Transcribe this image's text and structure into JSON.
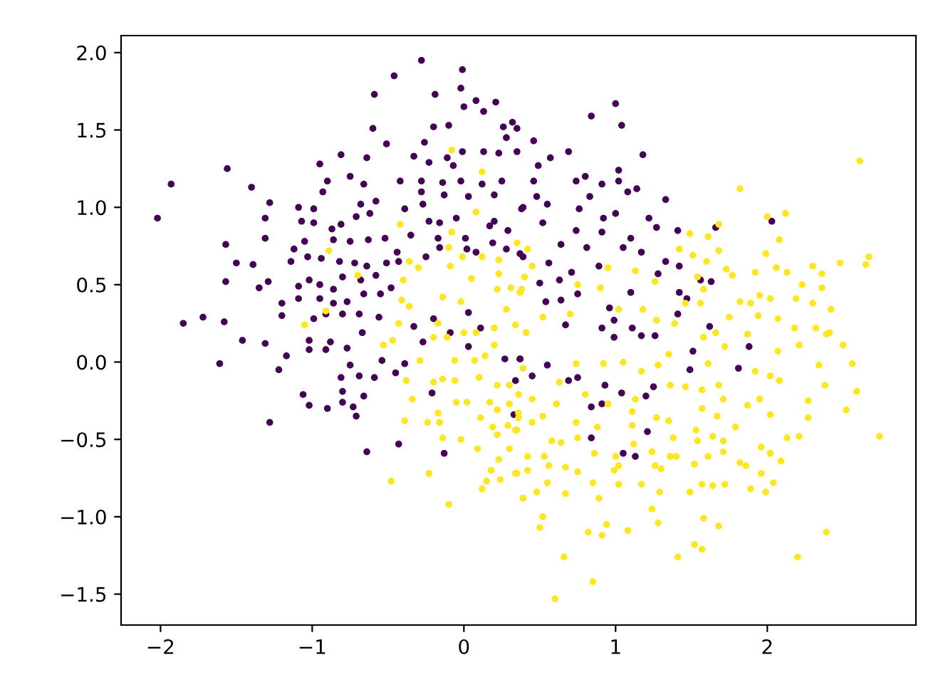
{
  "chart_data": {
    "type": "scatter",
    "marker": "circle",
    "grid": false,
    "xlim": [
      -2.26,
      2.98
    ],
    "ylim": [
      -1.7,
      2.11
    ],
    "xticks": [
      {
        "value": -2,
        "label": "−2"
      },
      {
        "value": -1,
        "label": "−1"
      },
      {
        "value": 0,
        "label": "0"
      },
      {
        "value": 1,
        "label": "1"
      },
      {
        "value": 2,
        "label": "2"
      }
    ],
    "yticks": [
      {
        "value": -1.5,
        "label": "−1.5"
      },
      {
        "value": -1.0,
        "label": "−1.0"
      },
      {
        "value": -0.5,
        "label": "−0.5"
      },
      {
        "value": 0.0,
        "label": "0.0"
      },
      {
        "value": 0.5,
        "label": "0.5"
      },
      {
        "value": 1.0,
        "label": "1.0"
      },
      {
        "value": 1.5,
        "label": "1.5"
      },
      {
        "value": 2.0,
        "label": "2.0"
      }
    ],
    "series": [
      {
        "color": "#440154",
        "x": [
          -2.02,
          -1.93,
          -1.56,
          -1.4,
          -1.28,
          -1.31,
          -1.31,
          -1.57,
          -1.5,
          -1.57,
          -1.39,
          -1.85,
          -1.72,
          -1.58,
          -0.46,
          -0.28,
          -0.01,
          -0.59,
          -0.19,
          -0.02,
          0.08,
          0.21,
          0.0,
          -0.6,
          -0.51,
          -0.2,
          -0.1,
          -0.26,
          -0.81,
          -0.95,
          -0.64,
          -0.75,
          -0.9,
          -0.93,
          -1.09,
          -0.99,
          -1.07,
          -0.99,
          -0.87,
          -0.81,
          -0.71,
          -0.62,
          -0.58,
          -0.68,
          -0.66,
          -0.42,
          -0.33,
          -0.23,
          -0.11,
          -0.07,
          -0.01,
          0.13,
          0.23,
          0.35,
          0.32,
          0.26,
          0.28,
          0.13,
          0.25,
          0.12,
          -0.02,
          -0.14,
          -0.28,
          -0.28,
          -0.27,
          -0.39,
          -0.13,
          0.03,
          0.2,
          0.39,
          0.2,
          -0.05,
          -0.16,
          -0.23,
          -0.35,
          -0.17,
          0.01,
          0.17,
          0.29,
          0.19,
          0.28,
          0.37,
          0.08,
          -0.16,
          -0.25,
          -0.44,
          -0.52,
          -0.63,
          -0.75,
          -0.86,
          -1.05,
          -1.12,
          -1.14,
          -1.03,
          -0.94,
          -0.82,
          -0.72,
          -0.64,
          -0.51,
          -0.43,
          -0.8,
          -0.68,
          -0.58,
          -0.48,
          -0.55,
          -0.66,
          -0.77,
          -0.86,
          -0.95,
          -1.02,
          -1.09,
          -1.09,
          -0.95,
          -0.86,
          -0.99,
          -0.91,
          -0.8,
          -0.69,
          -0.56,
          -1.2,
          -1.2,
          -1.29,
          -1.35,
          -0.33,
          -0.2,
          0.03,
          0.11,
          0.02,
          1.0,
          0.84,
          1.04,
          1.18,
          0.46,
          0.35,
          0.69,
          0.57,
          0.49,
          0.46,
          0.74,
          0.8,
          0.91,
          1.02,
          1.02,
          1.08,
          1.14,
          1.33,
          0.83,
          0.48,
          0.55,
          0.76,
          0.92,
          1.0,
          0.52,
          0.38,
          0.64,
          0.74,
          0.81,
          0.91,
          1.05,
          1.1,
          1.22,
          1.27,
          1.41,
          1.17,
          1.33,
          1.42,
          1.66,
          2.03,
          0.56,
          0.39,
          0.89,
          1.28,
          0.63,
          0.5,
          0.71,
          1.56,
          1.63,
          1.1,
          1.42,
          1.47,
          0.54,
          0.64,
          0.75,
          1.41,
          0.96,
          0.99,
          1.11,
          0.67,
          0.91,
          1.62,
          1.17,
          1.51,
          1.49,
          1.81,
          1.88,
          1.25,
          1.2,
          0.93,
          0.84,
          0.91,
          0.84,
          1.21,
          1.05,
          1.13,
          1.04,
          0.69,
          0.75,
          0.55,
          0.45,
          0.37,
          1.26,
          0.99,
          -1.61,
          -1.46,
          -1.31,
          -1.22,
          -1.17,
          -1.02,
          -1.02,
          -0.91,
          -0.77,
          -0.75,
          -0.81,
          -0.69,
          -0.59,
          -0.54,
          -0.39,
          -0.45,
          -1.06,
          -1.02,
          -0.9,
          -0.8,
          -0.8,
          -0.73,
          -0.71,
          -0.66,
          -1.28,
          -0.64,
          -0.43,
          -0.13,
          -0.21,
          -0.27,
          -0.09,
          0.03,
          0.27,
          0.37,
          0.33,
          0.34,
          -0.67,
          -0.88
        ],
        "values": [
          0.93,
          1.15,
          1.25,
          1.13,
          1.03,
          0.93,
          0.8,
          0.76,
          0.64,
          0.52,
          0.63,
          0.25,
          0.29,
          0.26,
          1.85,
          1.95,
          1.89,
          1.73,
          1.73,
          1.77,
          1.69,
          1.68,
          1.65,
          1.51,
          1.41,
          1.52,
          1.53,
          1.42,
          1.34,
          1.28,
          1.32,
          1.2,
          1.17,
          1.1,
          1.0,
          0.99,
          0.91,
          0.9,
          0.86,
          0.89,
          0.94,
          0.96,
          1.04,
          1.02,
          1.15,
          1.17,
          1.33,
          1.29,
          1.32,
          1.27,
          1.36,
          1.36,
          1.35,
          1.36,
          1.55,
          1.52,
          1.45,
          1.62,
          1.17,
          1.15,
          1.17,
          1.16,
          1.17,
          1.1,
          1.02,
          0.99,
          1.08,
          1.07,
          1.08,
          1.0,
          0.91,
          0.93,
          0.9,
          0.91,
          0.82,
          0.8,
          0.8,
          0.88,
          0.85,
          0.77,
          0.73,
          0.7,
          0.71,
          0.74,
          0.68,
          0.71,
          0.8,
          0.79,
          0.78,
          0.79,
          0.78,
          0.73,
          0.65,
          0.68,
          0.67,
          0.65,
          0.64,
          0.62,
          0.64,
          0.65,
          0.55,
          0.53,
          0.56,
          0.48,
          0.44,
          0.44,
          0.39,
          0.47,
          0.5,
          0.53,
          0.49,
          0.41,
          0.41,
          0.38,
          0.28,
          0.31,
          0.31,
          0.31,
          0.29,
          0.38,
          0.3,
          0.52,
          0.48,
          0.23,
          0.28,
          0.32,
          0.22,
          0.73,
          1.67,
          1.59,
          1.53,
          1.34,
          1.43,
          1.51,
          1.36,
          1.32,
          1.27,
          1.17,
          1.17,
          1.2,
          1.15,
          1.24,
          1.17,
          1.1,
          1.12,
          1.05,
          1.07,
          1.07,
          1.02,
          0.99,
          0.93,
          0.96,
          0.9,
          0.99,
          0.76,
          0.85,
          0.74,
          0.84,
          0.74,
          0.8,
          0.93,
          0.87,
          0.85,
          0.71,
          0.65,
          0.62,
          0.87,
          0.91,
          0.64,
          0.68,
          0.62,
          0.57,
          0.53,
          0.51,
          0.58,
          0.53,
          0.52,
          0.45,
          0.45,
          0.41,
          0.39,
          0.4,
          0.44,
          0.31,
          0.35,
          0.27,
          0.22,
          0.24,
          0.22,
          0.23,
          0.17,
          0.07,
          -0.05,
          -0.04,
          0.1,
          -0.16,
          -0.22,
          -0.15,
          -0.29,
          -0.27,
          -0.49,
          -0.45,
          -0.59,
          -0.61,
          -0.2,
          -0.12,
          -0.1,
          -0.02,
          -0.09,
          0.02,
          0.17,
          0.16,
          -0.01,
          0.14,
          0.12,
          -0.05,
          0.04,
          0.14,
          0.08,
          0.08,
          0.09,
          -0.02,
          -0.1,
          -0.09,
          -0.1,
          0.01,
          -0.01,
          -0.07,
          -0.21,
          -0.28,
          -0.3,
          -0.19,
          -0.26,
          -0.29,
          -0.35,
          -0.22,
          -0.39,
          -0.58,
          -0.53,
          -0.59,
          -0.2,
          0.13,
          0.19,
          0.1,
          0.02,
          0.02,
          -0.34,
          -0.12,
          0.19,
          0.13
        ]
      },
      {
        "color": "#fde725",
        "x": [
          -0.08,
          0.12,
          0.08,
          -0.42,
          -0.08,
          -0.89,
          -0.1,
          -0.01,
          -0.36,
          -0.3,
          -0.09,
          0.12,
          0.23,
          -0.7,
          -0.4,
          0.05,
          0.23,
          -0.41,
          -0.14,
          -0.02,
          0.22,
          0.31,
          0.38,
          -0.36,
          0.28,
          -0.91,
          -1.05,
          -0.43,
          -0.17,
          0.2,
          0.34,
          0.08,
          -0.11,
          2.61,
          1.82,
          2.12,
          2.0,
          1.68,
          1.49,
          1.61,
          2.08,
          1.42,
          1.68,
          1.99,
          1.51,
          2.67,
          2.65,
          2.48,
          2.3,
          1.6,
          1.73,
          1.77,
          1.92,
          2.06,
          2.13,
          2.36,
          0.95,
          1.13,
          1.26,
          1.54,
          1.58,
          2.23,
          2.36,
          0.9,
          0.75,
          0.45,
          0.4,
          0.35,
          0.42,
          2.19,
          2.02,
          1.95,
          1.89,
          1.82,
          1.56,
          1.46,
          2.3,
          2.42,
          1.94,
          2.07,
          2.18,
          2.32,
          2.41,
          1.87,
          1.75,
          1.66,
          1.39,
          1.27,
          1.18,
          1.02,
          0.7,
          0.52,
          0.37,
          2.74,
          2.59,
          2.52,
          2.56,
          2.5,
          2.38,
          2.34,
          2.27,
          2.27,
          2.21,
          2.13,
          2.09,
          2.02,
          1.96,
          2.02,
          1.95,
          1.87,
          2.02,
          2.08,
          1.92,
          2.04,
          1.96,
          1.99,
          1.89,
          2.39,
          2.2,
          1.82,
          1.86,
          1.79,
          1.71,
          1.72,
          1.64,
          1.57,
          1.49,
          1.58,
          1.68,
          1.57,
          1.52,
          1.41,
          1.28,
          1.24,
          1.29,
          1.17,
          1.02,
          1.08,
          0.94,
          0.91,
          0.82,
          0.89,
          0.85,
          0.66,
          0.85,
          0.6,
          0.67,
          0.52,
          0.5,
          0.48,
          0.39,
          0.55,
          0.42,
          0.56,
          0.67,
          0.75,
          1.0,
          1.26,
          1.3,
          1.36,
          1.52,
          1.61,
          1.71,
          1.64,
          1.54,
          1.4,
          1.38,
          1.24,
          1.12,
          1.02,
          0.99,
          0.86,
          0.75,
          0.64,
          0.53,
          0.42,
          0.34,
          0.34,
          0.45,
          0.58,
          0.74,
          0.88,
          1.11,
          1.11,
          1.27,
          1.35,
          1.67,
          1.53,
          1.57,
          1.71,
          1.68,
          1.57,
          1.46,
          1.36,
          1.13,
          0.95,
          0.8,
          0.61,
          0.52,
          0.36,
          0.45,
          0.63,
          0.36,
          1.61,
          1.72,
          1.35,
          1.28,
          1.17,
          1.05,
          0.92,
          0.74,
          1.58,
          2.07,
          2.21,
          2.39,
          -0.48,
          -0.1,
          -0.23,
          0.12,
          0.15,
          0.24,
          0.18,
          0.39,
          0.35,
          0.23,
          0.09,
          -0.02,
          -0.14,
          -0.39,
          -0.34,
          -0.24,
          -0.16,
          -0.17,
          -0.38,
          -0.29,
          -0.53,
          -0.47,
          -0.2,
          -0.14,
          -0.06,
          -0.05,
          0.02,
          0.1,
          0.11,
          0.19,
          0.22,
          0.3,
          0.29,
          0.35,
          0.36,
          0.22,
          0.17,
          0.3,
          0.22,
          0.3,
          0.07,
          0.14,
          -0.06,
          -0.2,
          0.2,
          0.0,
          0.39,
          0.41
        ],
        "values": [
          1.37,
          1.23,
          0.97,
          0.89,
          0.84,
          0.72,
          0.74,
          0.68,
          0.65,
          0.61,
          0.62,
          0.68,
          0.66,
          0.56,
          0.53,
          0.54,
          0.57,
          0.4,
          0.42,
          0.39,
          0.47,
          0.48,
          0.47,
          0.36,
          0.34,
          0.33,
          0.24,
          0.25,
          0.25,
          0.22,
          0.24,
          0.19,
          0.16,
          1.3,
          1.12,
          0.96,
          0.94,
          0.89,
          0.83,
          0.81,
          0.79,
          0.73,
          0.72,
          0.7,
          0.69,
          0.68,
          0.63,
          0.64,
          0.62,
          0.65,
          0.6,
          0.56,
          0.58,
          0.61,
          0.58,
          0.57,
          0.61,
          0.59,
          0.52,
          0.55,
          0.47,
          0.5,
          0.48,
          0.48,
          0.5,
          0.62,
          0.55,
          0.77,
          0.73,
          0.41,
          0.41,
          0.43,
          0.38,
          0.39,
          0.38,
          0.38,
          0.38,
          0.34,
          0.3,
          0.28,
          0.22,
          0.22,
          0.19,
          0.18,
          0.29,
          0.19,
          0.25,
          0.27,
          0.34,
          0.34,
          0.31,
          0.29,
          0.45,
          -0.48,
          -0.19,
          -0.31,
          -0.01,
          0.11,
          -0.15,
          -0.02,
          -0.25,
          -0.36,
          -0.48,
          -0.49,
          -0.64,
          -0.59,
          -0.55,
          -0.34,
          -0.24,
          -0.28,
          -0.09,
          -0.12,
          -0.06,
          -0.78,
          -0.72,
          -0.84,
          -0.82,
          -1.1,
          -1.26,
          -0.65,
          -0.67,
          -0.42,
          -0.58,
          -0.79,
          -0.8,
          -0.79,
          -0.84,
          -1.01,
          -1.06,
          -1.21,
          -1.18,
          -1.26,
          -1.04,
          -0.95,
          -0.84,
          -0.79,
          -0.79,
          -1.09,
          -1.05,
          -1.12,
          -1.1,
          -0.88,
          -0.78,
          -1.26,
          -1.42,
          -1.53,
          -0.85,
          -1.0,
          -1.07,
          -0.84,
          -0.88,
          -0.78,
          -0.7,
          -0.67,
          -0.68,
          -0.71,
          -0.61,
          -0.67,
          -0.69,
          -0.61,
          -0.66,
          -0.61,
          -0.51,
          -0.48,
          -0.51,
          -0.61,
          -0.49,
          -0.58,
          -0.53,
          -0.67,
          -0.7,
          -0.59,
          -0.49,
          -0.52,
          -0.61,
          -0.61,
          -0.72,
          -0.44,
          -0.39,
          -0.51,
          -0.39,
          -0.42,
          -0.41,
          -0.32,
          -0.36,
          -0.38,
          -0.35,
          -0.44,
          -0.3,
          -0.24,
          -0.15,
          -0.18,
          -0.16,
          -0.15,
          -0.24,
          -0.27,
          -0.21,
          -0.27,
          -0.35,
          -0.36,
          -0.24,
          -0.13,
          -0.21,
          -0.01,
          0.1,
          0.05,
          -0.02,
          -0.06,
          0.0,
          -0.01,
          -0.01,
          0.16,
          0.07,
          0.11,
          0.18,
          -0.77,
          -0.92,
          -0.72,
          -0.82,
          -0.77,
          -0.76,
          -0.7,
          -0.88,
          -0.72,
          -0.63,
          -0.56,
          -0.5,
          -0.49,
          -0.38,
          -0.24,
          -0.39,
          -0.39,
          -0.33,
          -0.12,
          0.01,
          0.11,
          0.14,
          -0.13,
          -0.11,
          -0.12,
          -0.26,
          -0.26,
          -0.1,
          -0.36,
          -0.42,
          -0.47,
          -0.56,
          -0.41,
          -0.44,
          -0.33,
          -0.31,
          -0.26,
          -0.27,
          -0.15,
          -0.15,
          0.01,
          0.04,
          0.01,
          0.16,
          0.11,
          0.19,
          -0.04,
          0.19
        ]
      }
    ]
  }
}
